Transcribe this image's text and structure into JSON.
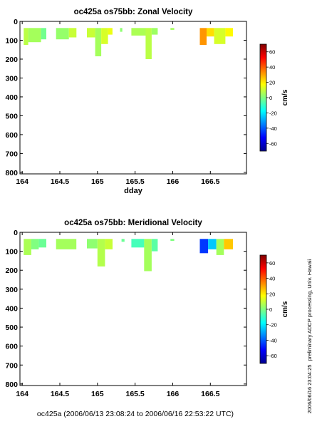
{
  "footer": "oc425a (2006/06/13 23:08:24 to 2006/06/16 22:53:22 UTC)",
  "side_note": "preliminary ADCP processing,  Univ. Hawaii",
  "side_date": "2006/06/16 23:04:25",
  "chart_data": [
    {
      "type": "heatmap",
      "title": "oc425a os75bb: Zonal Velocity",
      "xlabel": "dday",
      "ylabel": "",
      "xlim": [
        163.97,
        166.98
      ],
      "ylim": [
        808,
        0
      ],
      "xticks": [
        164,
        164.5,
        165,
        165.5,
        166,
        166.5
      ],
      "xtick_labels": [
        "164",
        "164.5",
        "165",
        "165.5",
        "166",
        "166.5"
      ],
      "yticks": [
        0,
        100,
        200,
        300,
        400,
        500,
        600,
        700,
        800
      ],
      "colorbar": {
        "label": "cm/s",
        "range": [
          -70,
          70
        ],
        "ticks": [
          60,
          40,
          20,
          0,
          -20,
          -40,
          -60
        ]
      },
      "grid": false,
      "segments": [
        {
          "x0": 164.02,
          "x1": 164.08,
          "zmax": 125,
          "value": 8
        },
        {
          "x0": 164.08,
          "x1": 164.25,
          "zmax": 110,
          "value": 5
        },
        {
          "x0": 164.25,
          "x1": 164.32,
          "zmax": 95,
          "value": -2
        },
        {
          "x0": 164.45,
          "x1": 164.62,
          "zmax": 95,
          "value": 3
        },
        {
          "x0": 164.62,
          "x1": 164.72,
          "zmax": 85,
          "value": 10
        },
        {
          "x0": 164.86,
          "x1": 164.97,
          "zmax": 85,
          "value": 10
        },
        {
          "x0": 164.97,
          "x1": 165.05,
          "zmax": 185,
          "value": 5
        },
        {
          "x0": 165.05,
          "x1": 165.14,
          "zmax": 120,
          "value": 12
        },
        {
          "x0": 165.14,
          "x1": 165.2,
          "zmax": 70,
          "value": 15
        },
        {
          "x0": 165.3,
          "x1": 165.33,
          "zmax": 55,
          "value": 2
        },
        {
          "x0": 165.45,
          "x1": 165.64,
          "zmax": 75,
          "value": 6
        },
        {
          "x0": 165.64,
          "x1": 165.72,
          "zmax": 200,
          "value": 8
        },
        {
          "x0": 165.72,
          "x1": 165.8,
          "zmax": 70,
          "value": 4
        },
        {
          "x0": 165.97,
          "x1": 166.02,
          "zmax": 45,
          "value": 5
        },
        {
          "x0": 166.36,
          "x1": 166.45,
          "zmax": 125,
          "value": 32
        },
        {
          "x0": 166.45,
          "x1": 166.55,
          "zmax": 80,
          "value": 22
        },
        {
          "x0": 166.55,
          "x1": 166.7,
          "zmax": 120,
          "value": 12
        },
        {
          "x0": 166.7,
          "x1": 166.8,
          "zmax": 80,
          "value": 18
        }
      ]
    },
    {
      "type": "heatmap",
      "title": "oc425a os75bb: Meridional Velocity",
      "xlabel": "",
      "ylabel": "",
      "xlim": [
        163.97,
        166.98
      ],
      "ylim": [
        808,
        0
      ],
      "xticks": [
        164,
        164.5,
        165,
        165.5,
        166,
        166.5
      ],
      "xtick_labels": [
        "164",
        "164.5",
        "165",
        "165.5",
        "166",
        "166.5"
      ],
      "yticks": [
        0,
        100,
        200,
        300,
        400,
        500,
        600,
        700,
        800
      ],
      "colorbar": {
        "label": "cm/s",
        "range": [
          -70,
          70
        ],
        "ticks": [
          60,
          40,
          20,
          0,
          -20,
          -40,
          -60
        ]
      },
      "grid": false,
      "segments": [
        {
          "x0": 164.02,
          "x1": 164.12,
          "zmax": 120,
          "value": 6
        },
        {
          "x0": 164.12,
          "x1": 164.22,
          "zmax": 90,
          "value": 0
        },
        {
          "x0": 164.22,
          "x1": 164.32,
          "zmax": 80,
          "value": -3
        },
        {
          "x0": 164.45,
          "x1": 164.72,
          "zmax": 90,
          "value": 5
        },
        {
          "x0": 164.86,
          "x1": 165.0,
          "zmax": 85,
          "value": 2
        },
        {
          "x0": 165.0,
          "x1": 165.1,
          "zmax": 180,
          "value": 7
        },
        {
          "x0": 165.1,
          "x1": 165.2,
          "zmax": 90,
          "value": 10
        },
        {
          "x0": 165.32,
          "x1": 165.36,
          "zmax": 50,
          "value": -3
        },
        {
          "x0": 165.45,
          "x1": 165.62,
          "zmax": 80,
          "value": -8
        },
        {
          "x0": 165.62,
          "x1": 165.72,
          "zmax": 205,
          "value": 5
        },
        {
          "x0": 165.72,
          "x1": 165.8,
          "zmax": 100,
          "value": -5
        },
        {
          "x0": 165.97,
          "x1": 166.02,
          "zmax": 45,
          "value": 0
        },
        {
          "x0": 166.36,
          "x1": 166.47,
          "zmax": 110,
          "value": -45
        },
        {
          "x0": 166.47,
          "x1": 166.58,
          "zmax": 90,
          "value": -25
        },
        {
          "x0": 166.58,
          "x1": 166.68,
          "zmax": 120,
          "value": 5
        },
        {
          "x0": 166.68,
          "x1": 166.8,
          "zmax": 90,
          "value": 25
        }
      ]
    }
  ]
}
